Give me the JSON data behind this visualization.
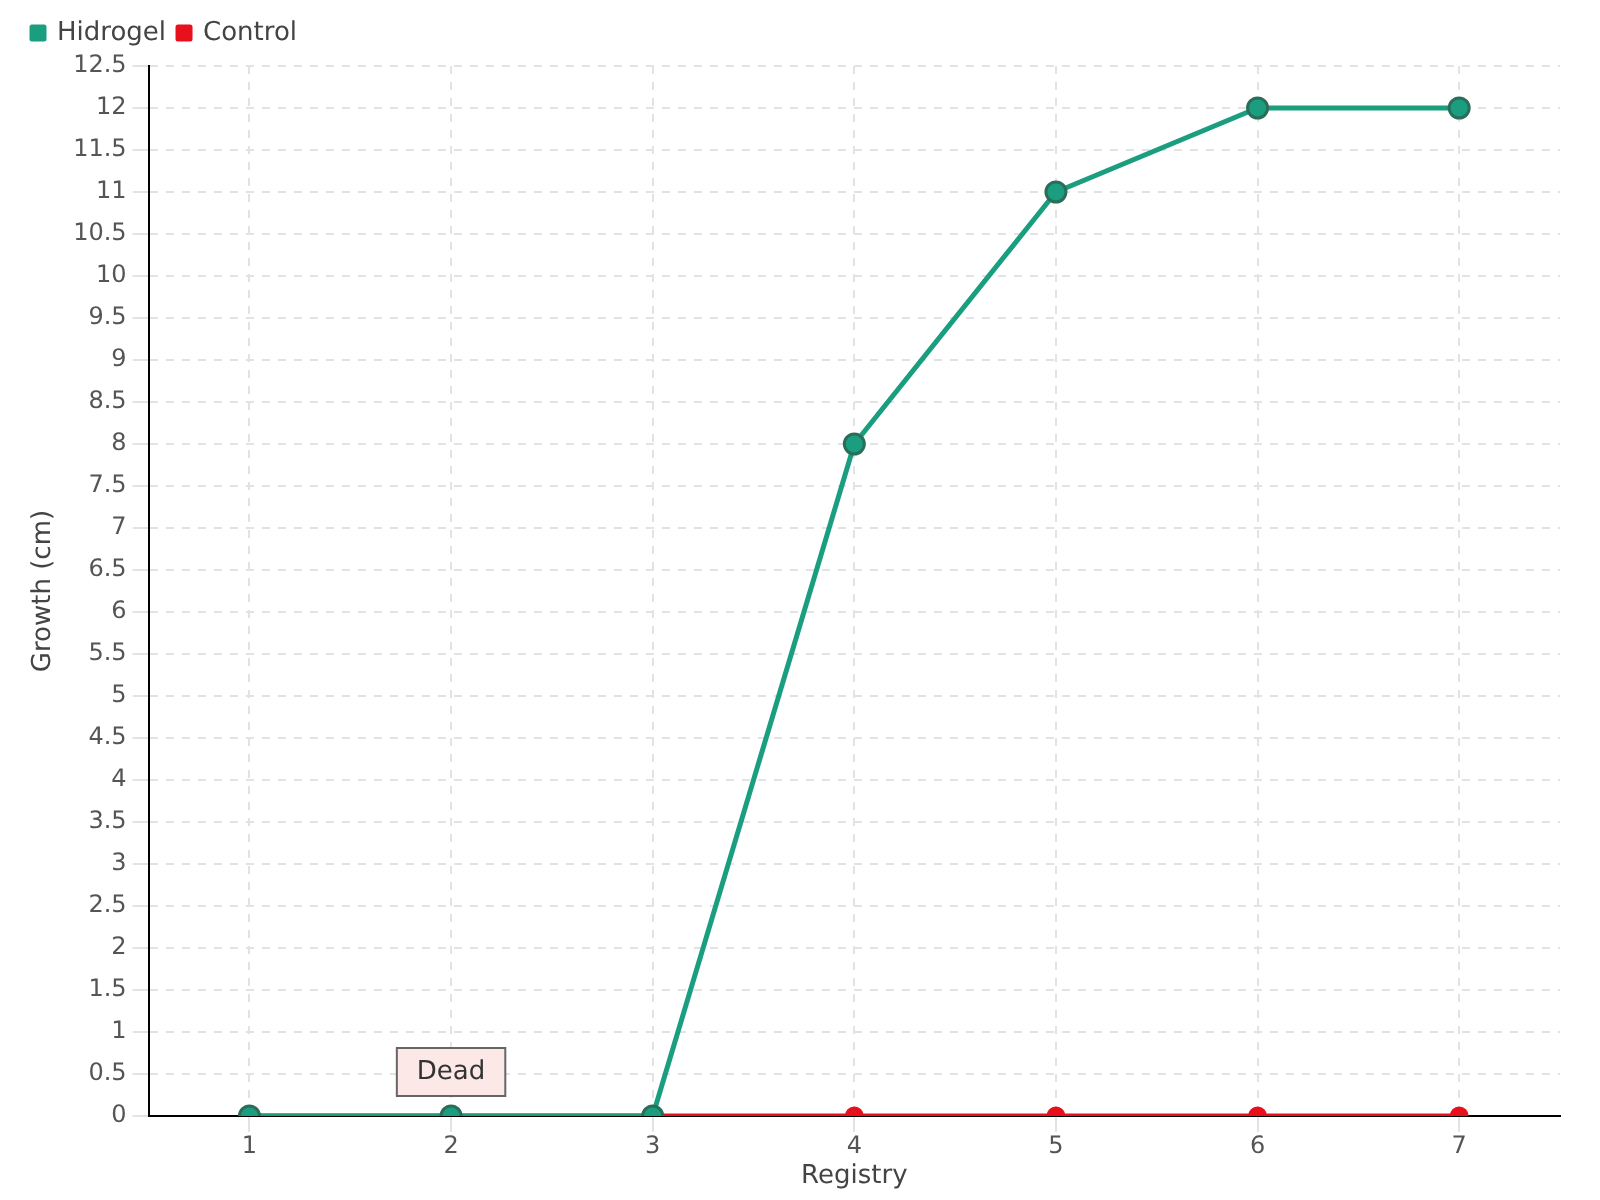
{
  "chart_data": {
    "type": "line",
    "xlabel": "Registry",
    "ylabel": "Growth (cm)",
    "categories": [
      "1",
      "2",
      "3",
      "4",
      "5",
      "6",
      "7"
    ],
    "series": [
      {
        "name": "Hidrogel",
        "color": "#1a9e7f",
        "values": [
          0,
          0,
          0,
          8,
          11,
          12,
          12
        ]
      },
      {
        "name": "Control",
        "color": "#e8101c",
        "values": [
          0,
          0,
          0,
          0,
          0,
          0,
          0
        ]
      }
    ],
    "ylim": [
      0,
      12.5
    ],
    "yticks": [
      0,
      0.5,
      1,
      1.5,
      2,
      2.5,
      3,
      3.5,
      4,
      4.5,
      5,
      5.5,
      6,
      6.5,
      7,
      7.5,
      8,
      8.5,
      9,
      9.5,
      10,
      10.5,
      11,
      11.5,
      12,
      12.5
    ],
    "grid": true,
    "legend": "top left",
    "marker": "circle",
    "line_style": "solid",
    "annotations": [
      {
        "text": "Dead",
        "x": "2",
        "y": 0
      }
    ]
  }
}
